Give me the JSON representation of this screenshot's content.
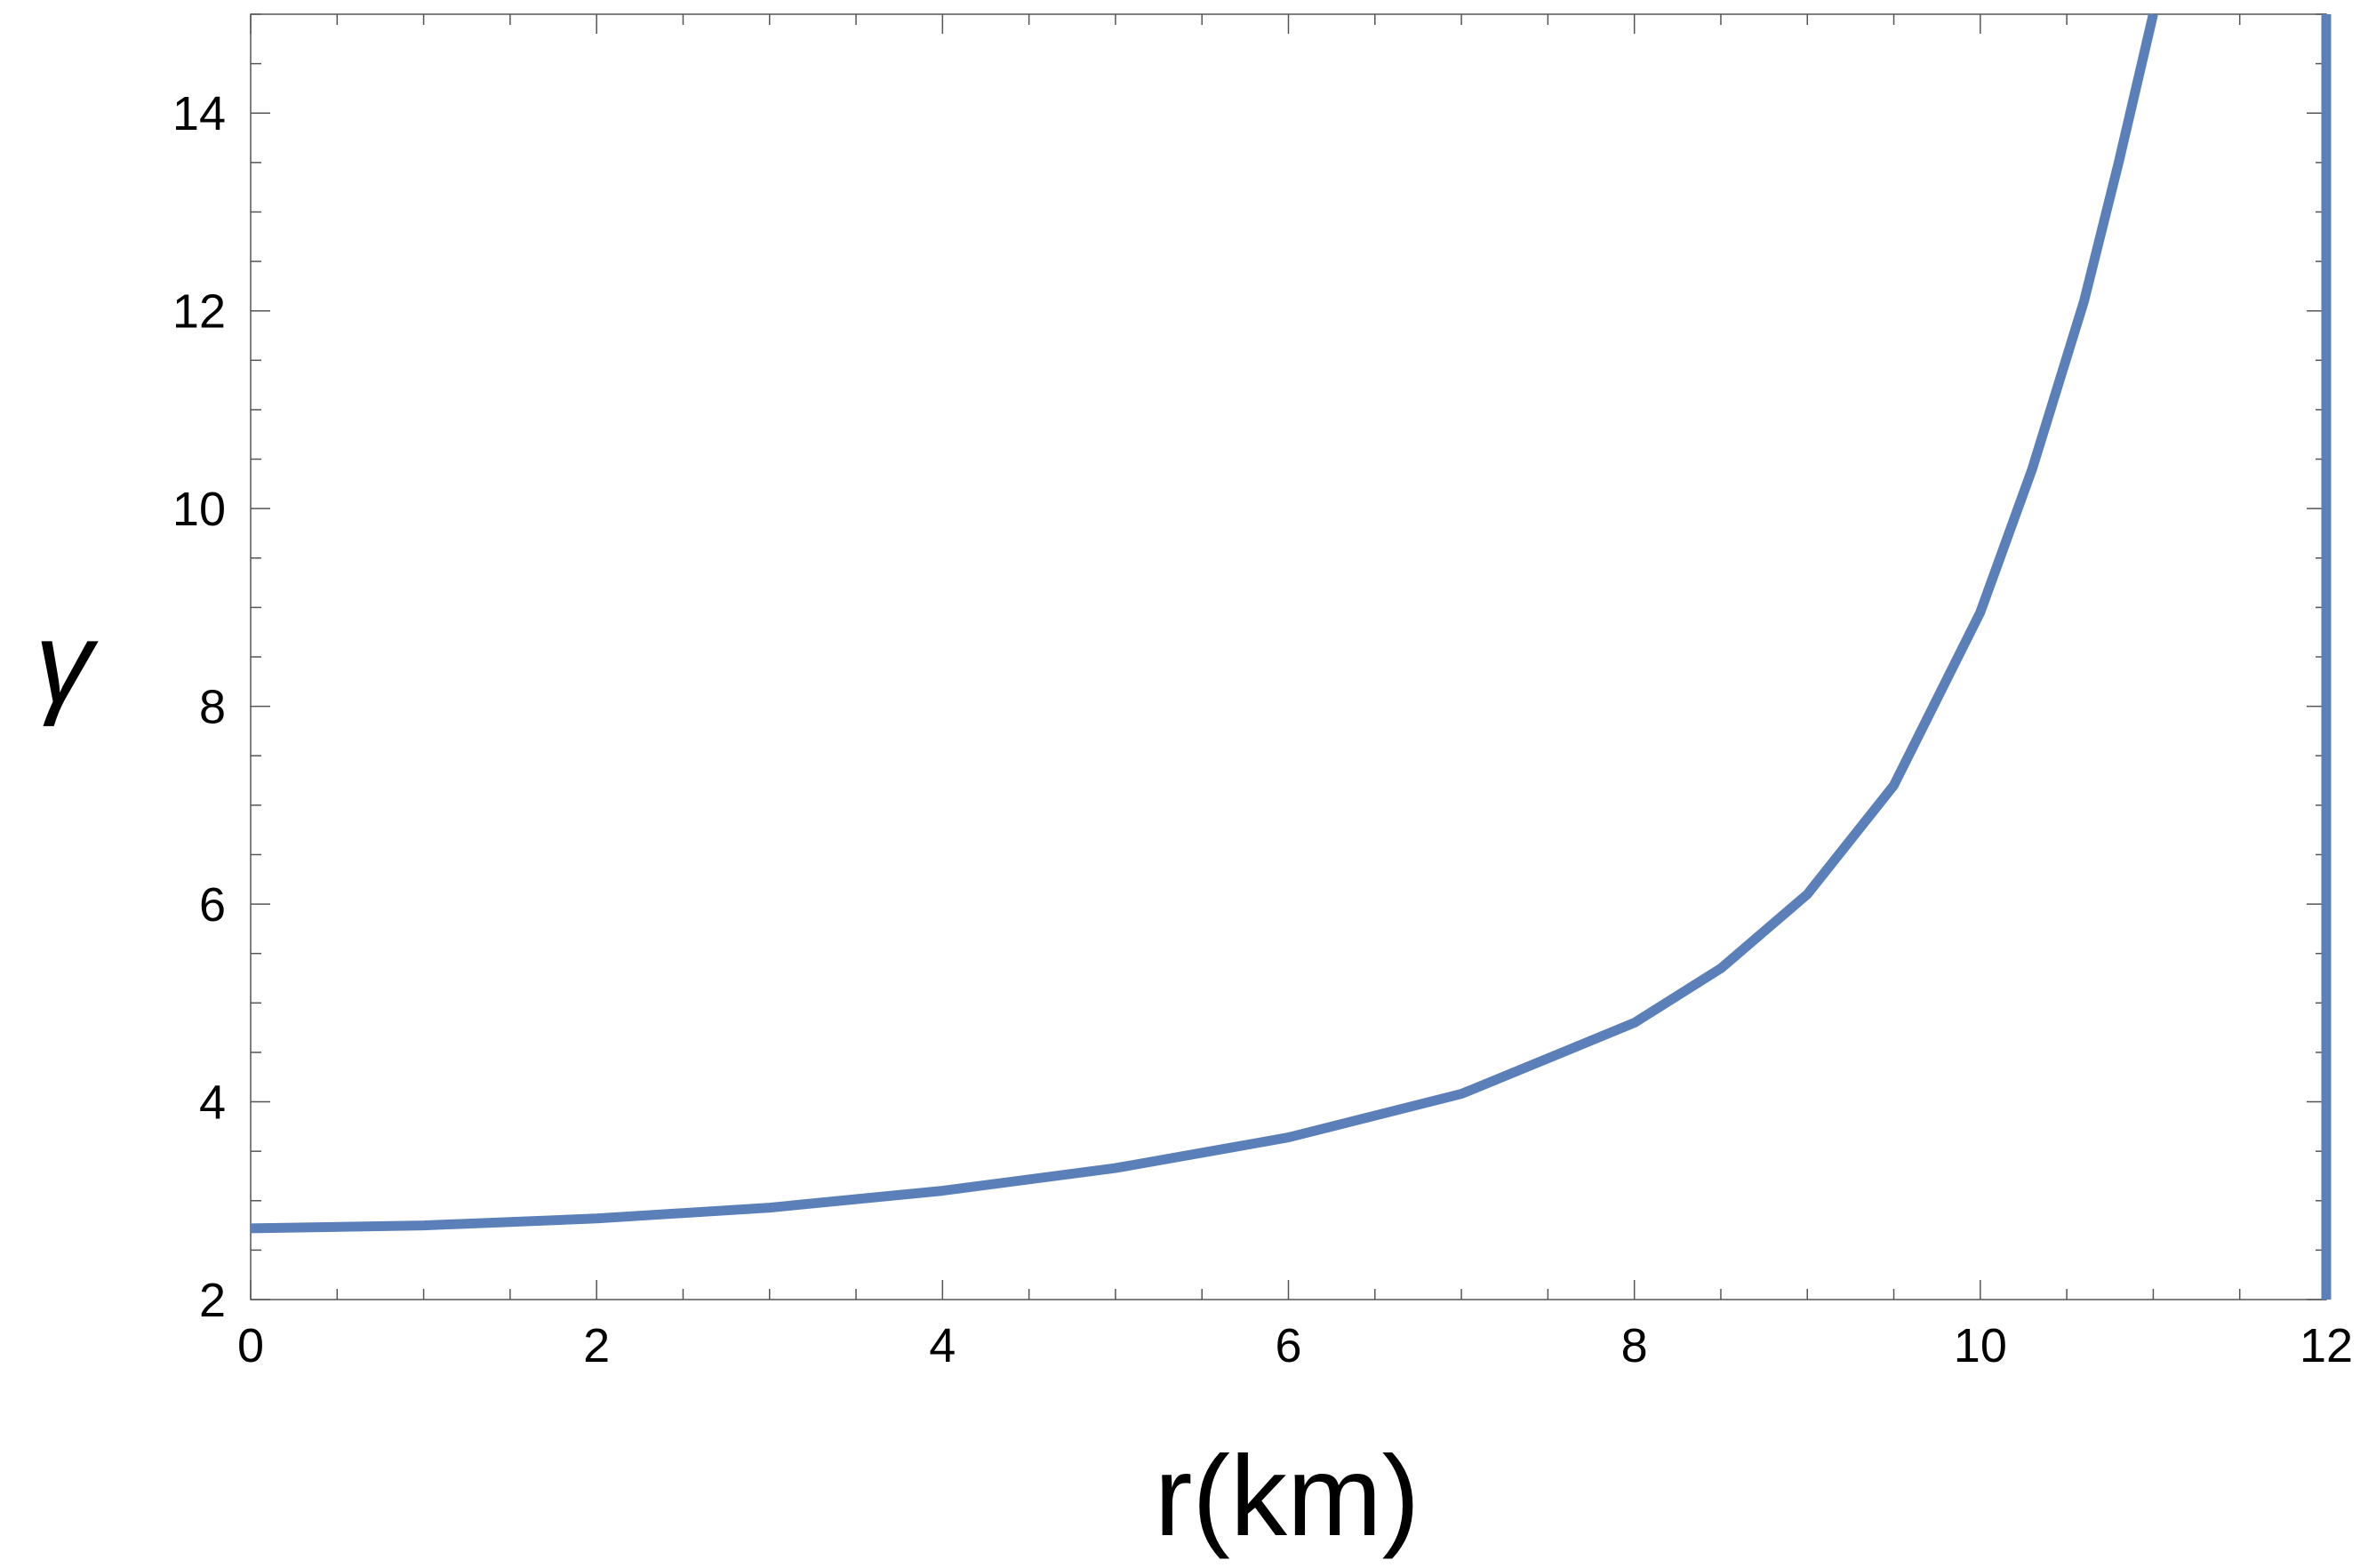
{
  "chart_data": {
    "type": "line",
    "title": "",
    "xlabel": "r(km)",
    "ylabel": "γ",
    "xlim": [
      0,
      12
    ],
    "ylim": [
      2,
      15
    ],
    "x_ticks": [
      0,
      2,
      4,
      6,
      8,
      10,
      12
    ],
    "y_ticks": [
      2,
      4,
      6,
      8,
      10,
      12,
      14
    ],
    "x_tick_labels": [
      "0",
      "2",
      "4",
      "6",
      "8",
      "10",
      "12"
    ],
    "y_tick_labels": [
      "2",
      "4",
      "6",
      "8",
      "10",
      "12",
      "14"
    ],
    "grid": false,
    "series": [
      {
        "color": "#5b7fb8",
        "x": [
          0,
          1,
          2,
          3,
          4,
          5,
          6,
          7,
          8,
          8.5,
          9,
          9.5,
          10,
          10.3,
          10.6,
          10.8,
          11.0
        ],
        "y": [
          2.72,
          2.75,
          2.82,
          2.93,
          3.1,
          3.33,
          3.64,
          4.08,
          4.8,
          5.35,
          6.1,
          7.2,
          8.95,
          10.4,
          12.1,
          13.5,
          15.0
        ]
      },
      {
        "color": "#5b7fb8",
        "x": [
          12,
          12
        ],
        "y": [
          2,
          15
        ]
      }
    ]
  }
}
